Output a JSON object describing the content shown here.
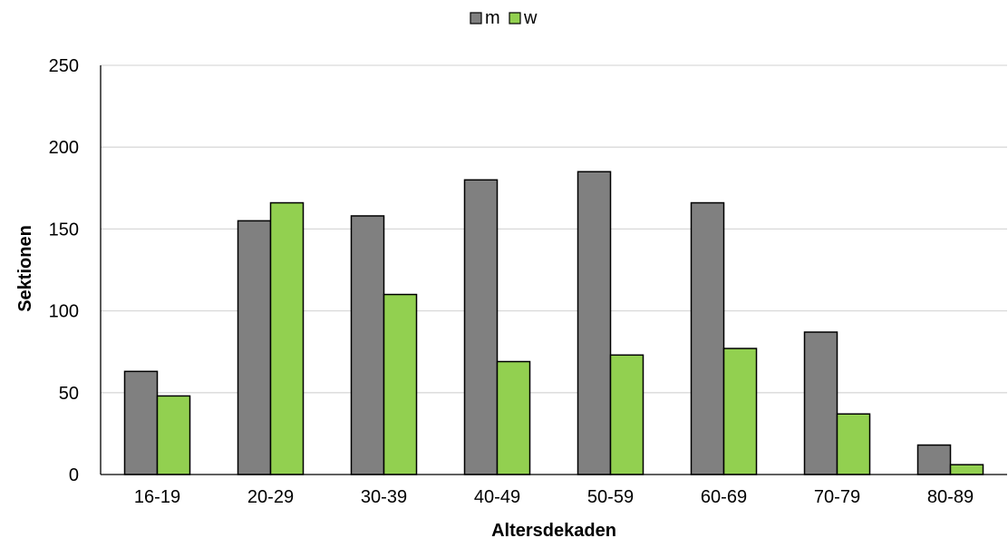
{
  "chart_data": {
    "type": "bar",
    "title": "",
    "xlabel": "Altersdekaden",
    "ylabel": "Sektionen",
    "categories": [
      "16-19",
      "20-29",
      "30-39",
      "40-49",
      "50-59",
      "60-69",
      "70-79",
      "80-89"
    ],
    "series": [
      {
        "name": "m",
        "color": "#808080",
        "values": [
          63,
          155,
          158,
          180,
          185,
          166,
          87,
          18
        ]
      },
      {
        "name": "w",
        "color": "#92d050",
        "values": [
          48,
          166,
          110,
          69,
          73,
          77,
          37,
          6
        ]
      }
    ],
    "ylim": [
      0,
      250
    ],
    "yticks": [
      0,
      50,
      100,
      150,
      200,
      250
    ],
    "grid": true,
    "legend_position": "top-center"
  }
}
